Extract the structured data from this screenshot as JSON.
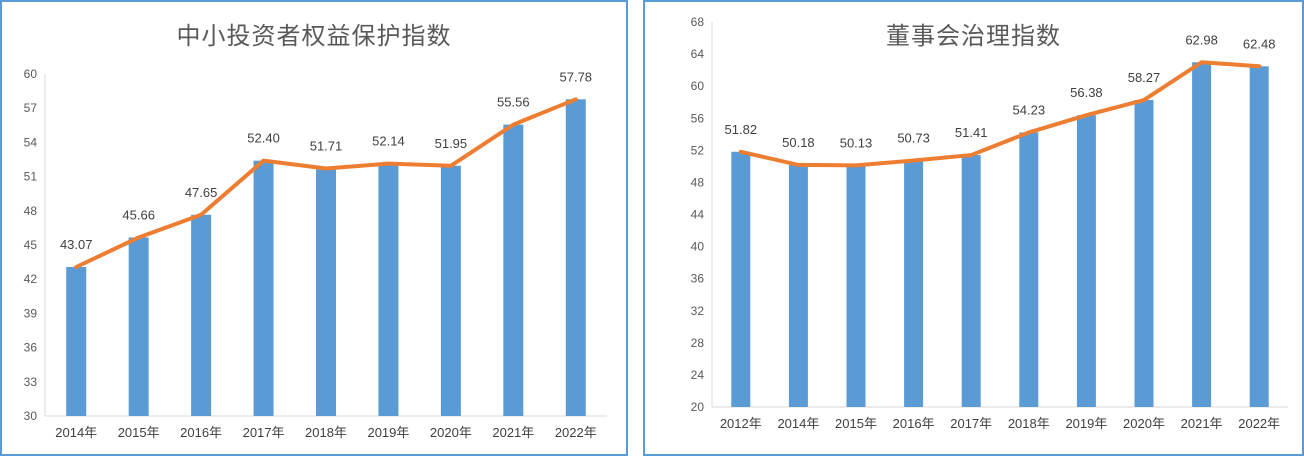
{
  "chart_data": [
    {
      "type": "bar",
      "title": "中小投资者权益保护指数",
      "categories": [
        "2014年",
        "2015年",
        "2016年",
        "2017年",
        "2018年",
        "2019年",
        "2020年",
        "2021年",
        "2022年"
      ],
      "values": [
        43.07,
        45.66,
        47.65,
        52.4,
        51.71,
        52.14,
        51.95,
        55.56,
        57.78
      ],
      "data_labels": [
        "43.07",
        "45.66",
        "47.65",
        "52.40",
        "51.71",
        "52.14",
        "51.95",
        "55.56",
        "57.78"
      ],
      "overlay_line": true,
      "ylim": [
        30,
        60
      ],
      "yticks": [
        30,
        33,
        36,
        39,
        42,
        45,
        48,
        51,
        54,
        57,
        60
      ],
      "grid": false,
      "bar_color": "#5b9bd5",
      "line_color": "#ed7d31"
    },
    {
      "type": "bar",
      "title": "董事会治理指数",
      "categories": [
        "2012年",
        "2014年",
        "2015年",
        "2016年",
        "2017年",
        "2018年",
        "2019年",
        "2020年",
        "2021年",
        "2022年"
      ],
      "values": [
        51.82,
        50.18,
        50.13,
        50.73,
        51.41,
        54.23,
        56.38,
        58.27,
        62.98,
        62.48
      ],
      "data_labels": [
        "51.82",
        "50.18",
        "50.13",
        "50.73",
        "51.41",
        "54.23",
        "56.38",
        "58.27",
        "62.98",
        "62.48"
      ],
      "overlay_line": true,
      "ylim": [
        20,
        68
      ],
      "yticks": [
        20,
        24,
        28,
        32,
        36,
        40,
        44,
        48,
        52,
        56,
        60,
        64,
        68
      ],
      "grid": false,
      "bar_color": "#5b9bd5",
      "line_color": "#ed7d31"
    }
  ]
}
